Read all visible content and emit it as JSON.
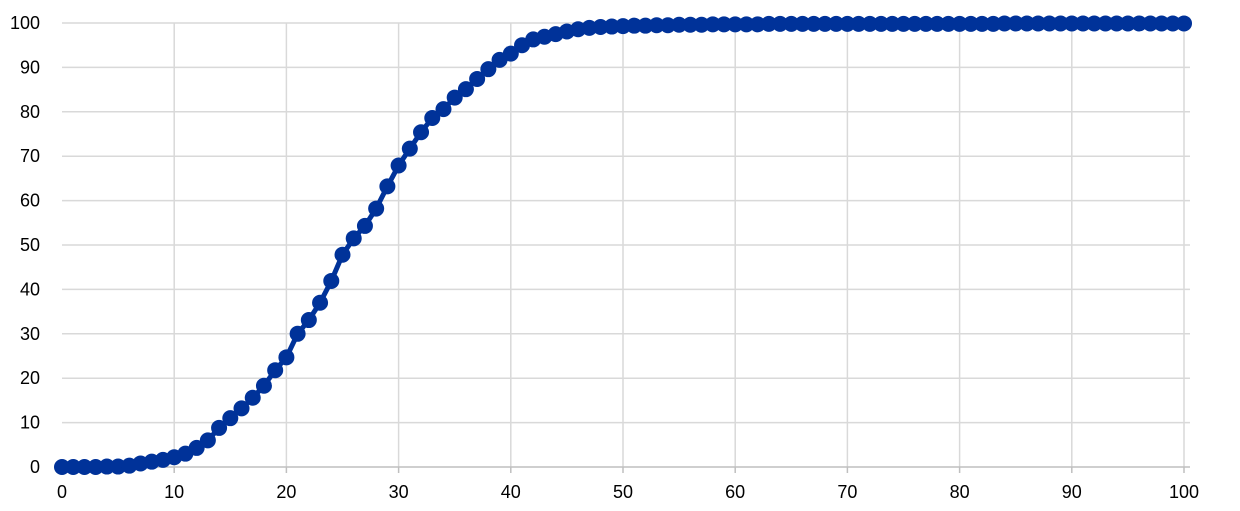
{
  "chart_data": {
    "type": "line",
    "title": "",
    "xlabel": "",
    "ylabel": "",
    "xlim": [
      0,
      100
    ],
    "ylim": [
      0,
      100
    ],
    "x_ticks": [
      "0",
      "10",
      "20",
      "30",
      "40",
      "50",
      "60",
      "70",
      "80",
      "90",
      "100"
    ],
    "y_ticks": [
      "0",
      "10",
      "20",
      "30",
      "40",
      "50",
      "60",
      "70",
      "80",
      "90",
      "100"
    ],
    "grid": true,
    "legend": "none",
    "series": [
      {
        "color": "#003299",
        "markers": true,
        "x": [
          0,
          1,
          2,
          3,
          4,
          5,
          6,
          7,
          8,
          9,
          10,
          11,
          12,
          13,
          14,
          15,
          16,
          17,
          18,
          19,
          20,
          21,
          22,
          23,
          24,
          25,
          26,
          27,
          28,
          29,
          30,
          31,
          32,
          33,
          34,
          35,
          36,
          37,
          38,
          39,
          40,
          41,
          42,
          43,
          44,
          45,
          46,
          47,
          48,
          49,
          50,
          51,
          52,
          53,
          54,
          55,
          56,
          57,
          58,
          59,
          60,
          61,
          62,
          63,
          64,
          65,
          66,
          67,
          68,
          69,
          70,
          71,
          72,
          73,
          74,
          75,
          76,
          77,
          78,
          79,
          80,
          81,
          82,
          83,
          84,
          85,
          86,
          87,
          88,
          89,
          90,
          91,
          92,
          93,
          94,
          95,
          96,
          97,
          98,
          99,
          100
        ],
        "y": [
          0,
          0,
          0,
          0,
          0.1,
          0.1,
          0.3,
          0.8,
          1.2,
          1.6,
          2.2,
          3.0,
          4.3,
          6.0,
          8.8,
          11.0,
          13.2,
          15.6,
          18.3,
          21.8,
          24.7,
          30.0,
          33.1,
          37.0,
          41.9,
          47.8,
          51.5,
          54.3,
          58.2,
          63.2,
          67.9,
          71.7,
          75.4,
          78.6,
          80.6,
          83.2,
          85.1,
          87.4,
          89.6,
          91.7,
          93.1,
          95.0,
          96.3,
          96.9,
          97.5,
          98.1,
          98.6,
          98.9,
          99.1,
          99.2,
          99.3,
          99.4,
          99.4,
          99.5,
          99.5,
          99.6,
          99.6,
          99.6,
          99.7,
          99.7,
          99.7,
          99.7,
          99.7,
          99.8,
          99.8,
          99.8,
          99.8,
          99.8,
          99.8,
          99.8,
          99.8,
          99.8,
          99.8,
          99.8,
          99.8,
          99.8,
          99.8,
          99.8,
          99.8,
          99.8,
          99.8,
          99.8,
          99.8,
          99.8,
          99.9,
          99.9,
          99.9,
          99.9,
          99.9,
          99.9,
          99.9,
          99.9,
          99.9,
          99.9,
          99.9,
          99.9,
          99.9,
          99.9,
          99.9,
          99.9,
          99.9
        ]
      }
    ]
  }
}
